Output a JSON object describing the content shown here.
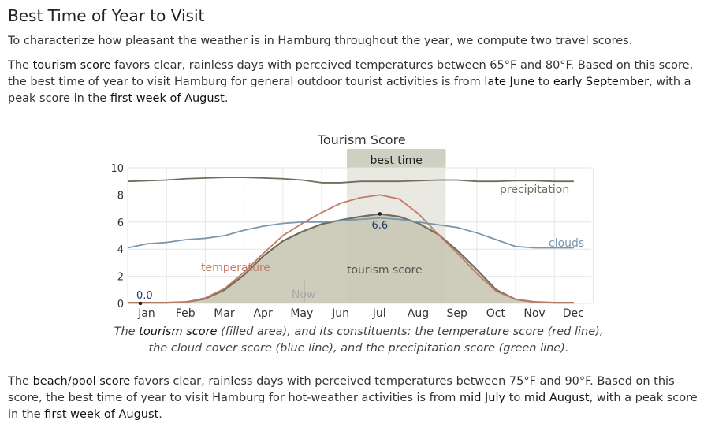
{
  "page": {
    "heading": "Best Time of Year to Visit",
    "intro": "To characterize how pleasant the weather is in Hamburg throughout the year, we compute two travel scores.",
    "tourism_par": {
      "t1": "The ",
      "k1": "tourism score",
      "t2": " favors clear, rainless days with perceived temperatures between 65°F and 80°F. Based on this score, the best time of year to visit Hamburg for general outdoor tourist activities is from ",
      "k2": "late June",
      "t3": " to ",
      "k3": "early September",
      "t4": ", with a peak score in the ",
      "k4": "first week of August",
      "t5": "."
    },
    "caption": {
      "t1": "The ",
      "k1": "tourism score",
      "t2": " (filled area), and its constituents: the temperature score (red line), the cloud cover score (blue line), and the precipitation score (green line)."
    },
    "beach_par": {
      "t1": "The ",
      "k1": "beach/pool score",
      "t2": " favors clear, rainless days with perceived temperatures between 75°F and 90°F. Based on this score, the best time of year to visit Hamburg for hot-weather activities is from ",
      "k2": "mid July",
      "t3": " to ",
      "k3": "mid August",
      "t4": ", with a peak score in the ",
      "k4": "first week of August",
      "t5": "."
    }
  },
  "chart_data": {
    "type": "area",
    "title": "Tourism Score",
    "categories": [
      "Jan",
      "Feb",
      "Mar",
      "Apr",
      "May",
      "Jun",
      "Jul",
      "Aug",
      "Sep",
      "Oct",
      "Nov",
      "Dec"
    ],
    "yticks": [
      0,
      2,
      4,
      6,
      8,
      10
    ],
    "ylim": [
      0,
      10
    ],
    "grid": true,
    "best_time": {
      "label": "best time",
      "start_month": 6.65,
      "end_month": 9.2
    },
    "now": {
      "label": "Now",
      "month": 5.55
    },
    "annotations": {
      "min_value": "0.0",
      "max_value": "6.6"
    },
    "series": [
      {
        "name": "tourism score",
        "color": "#c9c8b5",
        "line_color": "#6e6e5e",
        "x": [
          1,
          1.5,
          2,
          2.5,
          3,
          3.5,
          4,
          4.5,
          5,
          5.5,
          6,
          6.5,
          7,
          7.5,
          8,
          8.5,
          9,
          9.5,
          10,
          10.5,
          11,
          11.5,
          12,
          12.5
        ],
        "values": [
          0.05,
          0.05,
          0.05,
          0.1,
          0.35,
          1.0,
          2.1,
          3.5,
          4.6,
          5.3,
          5.85,
          6.15,
          6.4,
          6.6,
          6.4,
          5.9,
          5.1,
          3.9,
          2.5,
          1.0,
          0.3,
          0.1,
          0.05,
          0.05
        ]
      },
      {
        "name": "temperature",
        "color": "#c47b64",
        "x": [
          1,
          1.5,
          2,
          2.5,
          3,
          3.5,
          4,
          4.5,
          5,
          5.5,
          6,
          6.5,
          7,
          7.5,
          8,
          8.5,
          9,
          9.5,
          10,
          10.5,
          11,
          11.5,
          12,
          12.5
        ],
        "values": [
          0.05,
          0.05,
          0.05,
          0.1,
          0.4,
          1.1,
          2.3,
          3.7,
          5.0,
          5.9,
          6.7,
          7.4,
          7.8,
          8.0,
          7.7,
          6.6,
          5.1,
          3.7,
          2.2,
          0.9,
          0.3,
          0.1,
          0.05,
          0.05
        ]
      },
      {
        "name": "clouds",
        "color": "#7b96ad",
        "x": [
          1,
          1.5,
          2,
          2.5,
          3,
          3.5,
          4,
          4.5,
          5,
          5.5,
          6,
          6.5,
          7,
          7.5,
          8,
          8.5,
          9,
          9.5,
          10,
          10.5,
          11,
          11.5,
          12,
          12.5
        ],
        "values": [
          4.1,
          4.4,
          4.5,
          4.7,
          4.8,
          5.0,
          5.4,
          5.7,
          5.9,
          6.0,
          6.0,
          6.1,
          6.2,
          6.3,
          6.2,
          6.0,
          5.8,
          5.6,
          5.2,
          4.7,
          4.2,
          4.1,
          4.1,
          4.1
        ]
      },
      {
        "name": "precipitation",
        "color": "#6e6e5e",
        "x": [
          1,
          1.5,
          2,
          2.5,
          3,
          3.5,
          4,
          4.5,
          5,
          5.5,
          6,
          6.5,
          7,
          7.5,
          8,
          8.5,
          9,
          9.5,
          10,
          10.5,
          11,
          11.5,
          12,
          12.5
        ],
        "values": [
          9.0,
          9.05,
          9.1,
          9.2,
          9.25,
          9.3,
          9.3,
          9.25,
          9.2,
          9.1,
          8.9,
          8.9,
          9.0,
          9.0,
          9.0,
          9.05,
          9.1,
          9.1,
          9.0,
          9.0,
          9.05,
          9.05,
          9.0,
          9.0
        ]
      }
    ]
  }
}
